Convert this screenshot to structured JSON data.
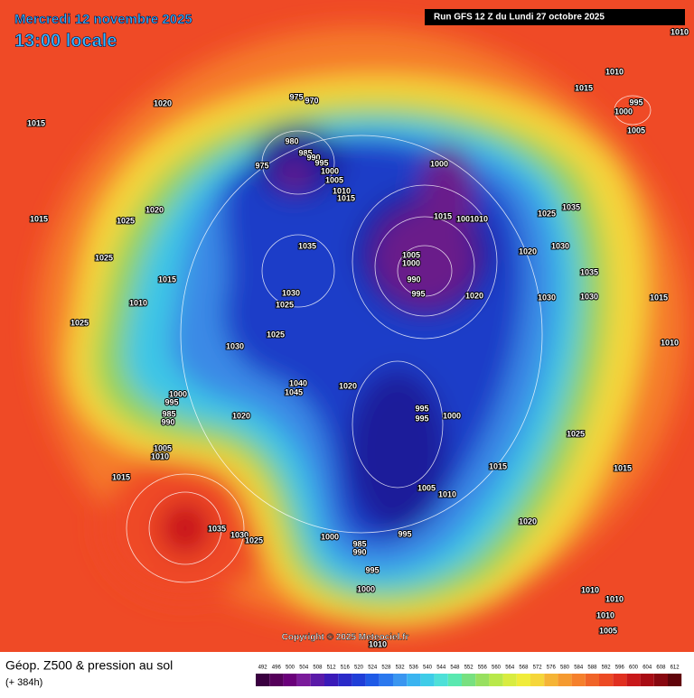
{
  "header": {
    "date": "Mercredi 12 novembre 2025",
    "time": "13:00 locale",
    "run": "Run GFS 12 Z du Lundi 27 octobre 2025"
  },
  "copyright": "Copyright © 2025 Meteociel.fr",
  "footer": {
    "title": "Géop. Z500 & pression au sol",
    "lead": "(+ 384h)"
  },
  "colorbar": {
    "values": [
      492,
      496,
      500,
      504,
      508,
      512,
      516,
      520,
      524,
      528,
      532,
      536,
      540,
      544,
      548,
      552,
      556,
      560,
      564,
      568,
      572,
      576,
      580,
      584,
      588,
      592,
      596,
      600,
      604,
      608,
      612
    ]
  },
  "pressure_labels": [
    1015,
    1020,
    975,
    970,
    980,
    975,
    985,
    990,
    995,
    1000,
    1005,
    1010,
    1015,
    1000,
    1015,
    1005,
    1010,
    1005,
    1000,
    990,
    995,
    1020,
    1035,
    1030,
    1025,
    1025,
    1030,
    1020,
    1040,
    1045,
    1000,
    995,
    985,
    990,
    1020,
    1005,
    1010,
    1015,
    1035,
    1030,
    1025,
    995,
    995,
    1000,
    1015,
    1005,
    1010,
    1000,
    985,
    990,
    995,
    995,
    1000,
    1020,
    1025,
    1015,
    1020,
    1030,
    1035,
    1025,
    1035,
    1030,
    1030,
    1015,
    1010,
    1015,
    1010,
    995,
    1000,
    1005,
    1010,
    1025,
    1020,
    1015,
    1025,
    1015,
    1010,
    1025,
    1010,
    1010,
    1010,
    1005,
    1010
  ]
}
